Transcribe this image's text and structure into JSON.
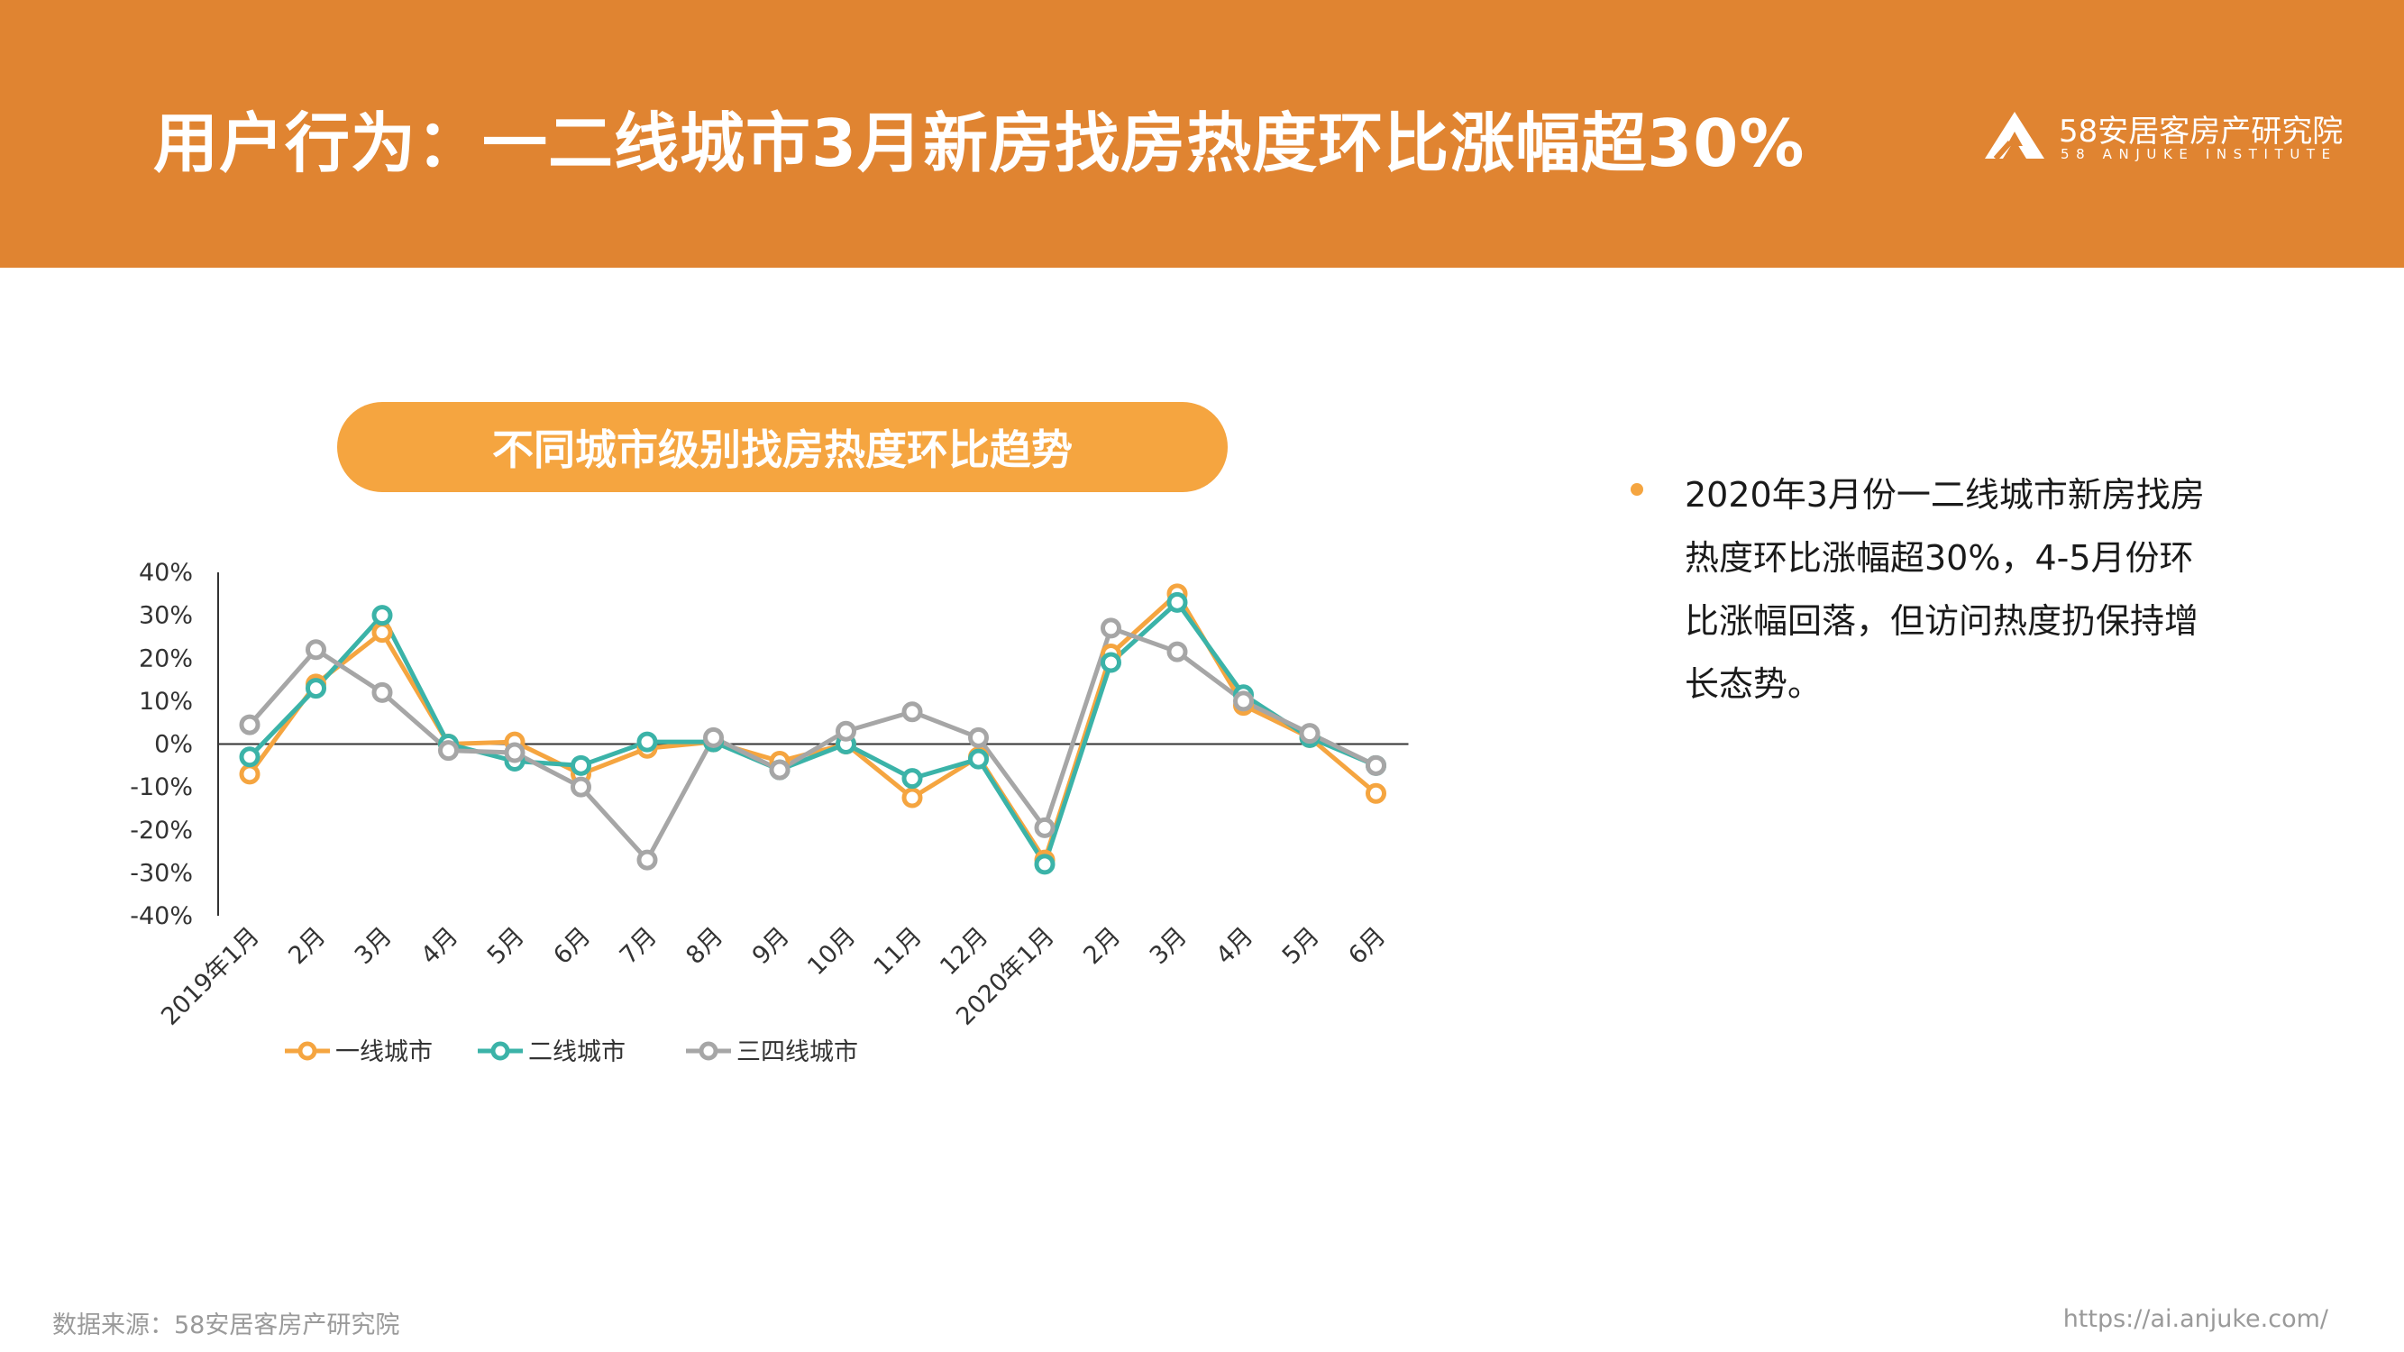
{
  "header": {
    "title": "用户行为：一二线城市3月新房找房热度环比涨幅超30%",
    "logo_cn": "58安居客房产研究院",
    "logo_en": "58 ANJUKE INSTITUTE"
  },
  "colors": {
    "header_bg": "#E08431",
    "pill_bg": "#F5A540",
    "tier1": "#F5A540",
    "tier2": "#3BB3A8",
    "tier34": "#A6A6A6"
  },
  "chart_data": {
    "type": "line",
    "title": "不同城市级别找房热度环比趋势",
    "categories": [
      "2019年1月",
      "2月",
      "3月",
      "4月",
      "5月",
      "6月",
      "7月",
      "8月",
      "9月",
      "10月",
      "11月",
      "12月",
      "2020年1月",
      "2月",
      "3月",
      "4月",
      "5月",
      "6月"
    ],
    "ylim": [
      -40,
      40
    ],
    "yticks": [
      40,
      30,
      20,
      10,
      0,
      -10,
      -20,
      -30,
      -40
    ],
    "ytick_labels": [
      "40%",
      "30%",
      "20%",
      "10%",
      "0%",
      "-10%",
      "-20%",
      "-30%",
      "-40%"
    ],
    "legend_position": "bottom",
    "series": [
      {
        "name": "一线城市",
        "color": "#F5A540",
        "values": [
          -7,
          14,
          26,
          0,
          0.5,
          -7,
          -1,
          0.5,
          -4,
          0,
          -12.5,
          -3,
          -27,
          21,
          35,
          9,
          1.5,
          -11.5
        ]
      },
      {
        "name": "二线城市",
        "color": "#3BB3A8",
        "values": [
          -3,
          13,
          30,
          0,
          -4,
          -5,
          0.5,
          0.5,
          -6,
          0,
          -8,
          -3.5,
          -28,
          19,
          33,
          11.5,
          1.5,
          -5
        ]
      },
      {
        "name": "三四线城市",
        "color": "#A6A6A6",
        "values": [
          4.5,
          22,
          12,
          -1.5,
          -2,
          -10,
          -27,
          1.5,
          -6,
          3,
          7.5,
          1.5,
          -19.5,
          27,
          21.5,
          10,
          2.5,
          -5
        ]
      }
    ]
  },
  "bullet": {
    "text": "2020年3月份一二线城市新房找房热度环比涨幅超30%，4-5月份环比涨幅回落，但访问热度扔保持增长态势。"
  },
  "footer": {
    "source": "数据来源：58安居客房产研究院",
    "url": "https://ai.anjuke.com/"
  }
}
